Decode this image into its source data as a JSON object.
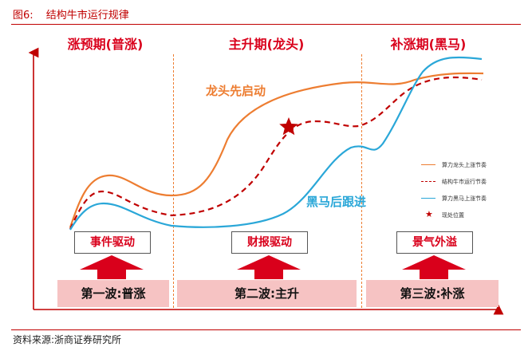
{
  "figure": {
    "number": "图6:",
    "title": "结构牛市运行规律",
    "source": "资料来源:浙商证券研究所"
  },
  "phases": [
    {
      "title": "涨预期(普涨)",
      "driver": "事件驱动",
      "wave": "第一波:普涨"
    },
    {
      "title": "主升期(龙头)",
      "driver": "财报驱动",
      "wave": "第二波:主升"
    },
    {
      "title": "补涨期(黑马)",
      "driver": "景气外溢",
      "wave": "第三波:补涨"
    }
  ],
  "annotations": {
    "leader": "龙头先启动",
    "darkhorse": "黑马后跟进"
  },
  "legend": [
    {
      "label": "算力龙头上涨节奏",
      "color": "#ed7d31",
      "style": "solid"
    },
    {
      "label": "结构牛市运行节奏",
      "color": "#c00000",
      "style": "dashed"
    },
    {
      "label": "算力黑马上涨节奏",
      "color": "#2aa7d8",
      "style": "solid"
    },
    {
      "label": "现处位置",
      "color": "#c00000",
      "style": "star"
    }
  ],
  "colors": {
    "accent_red": "#d9001b",
    "orange": "#ed7d31",
    "blue": "#2aa7d8",
    "wave_fill": "#f6c3c3"
  }
}
